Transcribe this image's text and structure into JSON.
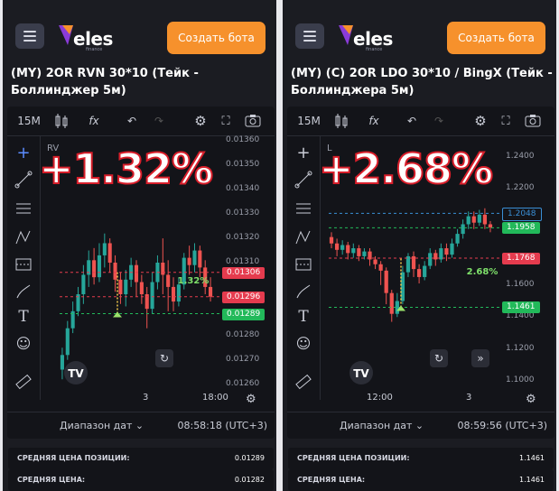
{
  "colors": {
    "accent": "#f6912c",
    "up": "#26a69a",
    "down": "#ef5350",
    "green_badge": "#22b95a",
    "red_badge": "#e53b4e",
    "pct_stroke": "#d81e2a"
  },
  "panels": [
    {
      "app": {
        "logo_text": "eles",
        "logo_sub": "finance",
        "create_button": "Создать бота"
      },
      "title": "(MY) 2OR RVN 30*10 (Тейк - Боллинджер 5м)",
      "toolbar": {
        "interval": "15M",
        "fx": "fx"
      },
      "overlay_percent": "+1.32%",
      "symbol_fragment": "RV",
      "price_ticks": [
        "0.01360",
        "0.01350",
        "0.01340",
        "0.01330",
        "0.01320",
        "0.01310",
        "0.01280",
        "0.01270",
        "0.01260"
      ],
      "badges": [
        {
          "value": "0.01306",
          "color": "red"
        },
        {
          "value": "0.01296",
          "color": "red"
        },
        {
          "value": "0.01289",
          "color": "green"
        }
      ],
      "chart_label": "1.32%",
      "time_labels": [
        "3",
        "18:00"
      ],
      "date_range": "Диапазон дат",
      "clock": "08:58:18 (UTC+3)",
      "stats": [
        {
          "label": "СРЕДНЯЯ ЦЕНА ПОЗИЦИИ:",
          "value": "0.01289"
        },
        {
          "label": "СРЕДНЯЯ ЦЕНА:",
          "value": "0.01282"
        }
      ],
      "candles": [
        [
          0.01266,
          0.01272,
          0.01262,
          0.01275
        ],
        [
          0.01272,
          0.01283,
          0.0127,
          0.01286
        ],
        [
          0.01283,
          0.0129,
          0.01281,
          0.01294
        ],
        [
          0.0129,
          0.01297,
          0.01288,
          0.013
        ],
        [
          0.01297,
          0.01305,
          0.01293,
          0.01309
        ],
        [
          0.01305,
          0.01311,
          0.013,
          0.01315
        ],
        [
          0.01311,
          0.01304,
          0.01301,
          0.01316
        ],
        [
          0.01304,
          0.01313,
          0.01302,
          0.01318
        ],
        [
          0.01313,
          0.01318,
          0.01308,
          0.01322
        ],
        [
          0.01318,
          0.0131,
          0.01306,
          0.0132
        ],
        [
          0.0131,
          0.01303,
          0.01298,
          0.01313
        ],
        [
          0.01303,
          0.01297,
          0.01293,
          0.01306
        ],
        [
          0.01297,
          0.01303,
          0.01292,
          0.01307
        ],
        [
          0.01303,
          0.01309,
          0.013,
          0.01312
        ],
        [
          0.01309,
          0.01302,
          0.01296,
          0.01311
        ],
        [
          0.01302,
          0.01297,
          0.01293,
          0.01305
        ],
        [
          0.01297,
          0.01291,
          0.01283,
          0.013
        ],
        [
          0.01291,
          0.01302,
          0.01289,
          0.01306
        ],
        [
          0.01302,
          0.0131,
          0.01299,
          0.01313
        ],
        [
          0.0131,
          0.01305,
          0.01297,
          0.0132
        ],
        [
          0.01305,
          0.013,
          0.0129,
          0.01311
        ],
        [
          0.013,
          0.01294,
          0.0129,
          0.01304
        ],
        [
          0.01294,
          0.01301,
          0.01292,
          0.01304
        ],
        [
          0.01301,
          0.01312,
          0.01299,
          0.01314
        ],
        [
          0.01312,
          0.01309,
          0.01305,
          0.01317
        ],
        [
          0.01309,
          0.01315,
          0.01306,
          0.01318
        ],
        [
          0.01315,
          0.01308,
          0.01304,
          0.01317
        ],
        [
          0.01308,
          0.013,
          0.01297,
          0.01311
        ],
        [
          0.013,
          0.01296,
          0.01294,
          0.01304
        ]
      ],
      "axis_min": 0.01258,
      "axis_max": 0.01362
    },
    {
      "app": {
        "logo_text": "eles",
        "logo_sub": "finance",
        "create_button": "Создать бота"
      },
      "title": "(MY) (C) 2OR LDO 30*10 / BingX (Тейк - Боллинджера 5м)",
      "toolbar": {
        "interval": "15M",
        "fx": "fx"
      },
      "overlay_percent": "+2.68%",
      "symbol_fragment": "L",
      "price_ticks": [
        "1.2400",
        "1.2200",
        "1.1600",
        "1.1400",
        "1.1200",
        "1.1000"
      ],
      "badges": [
        {
          "value": "1.2048",
          "color": "outline"
        },
        {
          "value": "1.1958",
          "color": "green"
        },
        {
          "value": "1.1768",
          "color": "red"
        },
        {
          "value": "1.1461",
          "color": "green"
        }
      ],
      "chart_label": "2.68%",
      "time_labels": [
        "12:00",
        "3"
      ],
      "date_range": "Диапазон дат",
      "clock": "08:59:56 (UTC+3)",
      "stats": [
        {
          "label": "СРЕДНЯЯ ЦЕНА ПОЗИЦИИ:",
          "value": "1.1461"
        },
        {
          "label": "СРЕДНЯЯ ЦЕНА:",
          "value": "1.1461"
        }
      ],
      "candles": [
        [
          1.19,
          1.186,
          1.183,
          1.193
        ],
        [
          1.186,
          1.182,
          1.178,
          1.189
        ],
        [
          1.182,
          1.185,
          1.179,
          1.188
        ],
        [
          1.185,
          1.18,
          1.176,
          1.187
        ],
        [
          1.18,
          1.183,
          1.177,
          1.186
        ],
        [
          1.183,
          1.178,
          1.175,
          1.185
        ],
        [
          1.178,
          1.181,
          1.176,
          1.183
        ],
        [
          1.181,
          1.176,
          1.172,
          1.183
        ],
        [
          1.176,
          1.173,
          1.17,
          1.178
        ],
        [
          1.173,
          1.169,
          1.16,
          1.175
        ],
        [
          1.169,
          1.155,
          1.148,
          1.171
        ],
        [
          1.155,
          1.142,
          1.137,
          1.157
        ],
        [
          1.142,
          1.15,
          1.14,
          1.155
        ],
        [
          1.15,
          1.168,
          1.148,
          1.172
        ],
        [
          1.168,
          1.178,
          1.165,
          1.18
        ],
        [
          1.178,
          1.17,
          1.165,
          1.181
        ],
        [
          1.17,
          1.165,
          1.161,
          1.173
        ],
        [
          1.165,
          1.172,
          1.163,
          1.175
        ],
        [
          1.172,
          1.18,
          1.17,
          1.183
        ],
        [
          1.18,
          1.176,
          1.172,
          1.182
        ],
        [
          1.176,
          1.183,
          1.174,
          1.186
        ],
        [
          1.183,
          1.179,
          1.175,
          1.186
        ],
        [
          1.179,
          1.186,
          1.177,
          1.189
        ],
        [
          1.186,
          1.192,
          1.184,
          1.195
        ],
        [
          1.192,
          1.198,
          1.189,
          1.201
        ],
        [
          1.198,
          1.203,
          1.195,
          1.206
        ],
        [
          1.203,
          1.199,
          1.195,
          1.206
        ],
        [
          1.199,
          1.204,
          1.197,
          1.207
        ],
        [
          1.204,
          1.198,
          1.195,
          1.208
        ],
        [
          1.198,
          1.196,
          1.193,
          1.2
        ]
      ],
      "axis_min": 1.095,
      "axis_max": 1.253
    }
  ]
}
